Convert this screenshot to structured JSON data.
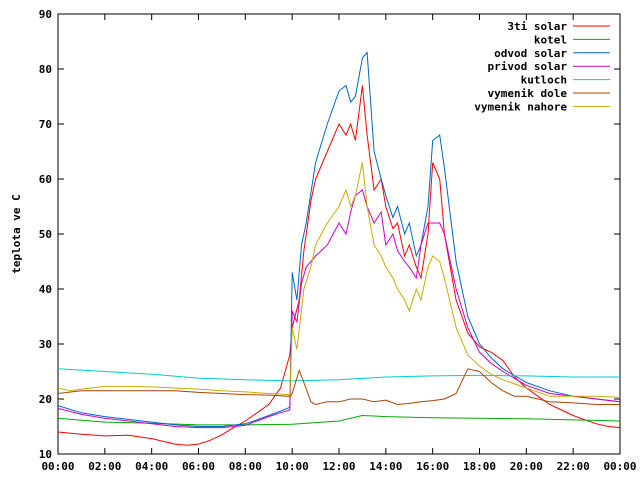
{
  "chart_data": {
    "type": "line",
    "title": "",
    "xlabel": "",
    "ylabel": "teplota ve C",
    "xlim": [
      0,
      24
    ],
    "ylim": [
      10,
      90
    ],
    "x_ticks": [
      "00:00",
      "02:00",
      "04:00",
      "06:00",
      "08:00",
      "10:00",
      "12:00",
      "14:00",
      "16:00",
      "18:00",
      "20:00",
      "22:00",
      "00:00"
    ],
    "y_ticks": [
      "10",
      "20",
      "30",
      "40",
      "50",
      "60",
      "70",
      "80",
      "90"
    ],
    "grid": false,
    "legend_position": "top-right",
    "series": [
      {
        "name": "3ti solar",
        "color": "#ff0000",
        "x": [
          0,
          1,
          2,
          3,
          4,
          5,
          5.5,
          6,
          6.5,
          7,
          7.5,
          8,
          8.5,
          9,
          9.5,
          9.9,
          10,
          10.3,
          10.5,
          10.8,
          11,
          11.5,
          12,
          12.3,
          12.5,
          12.7,
          13,
          13.2,
          13.5,
          13.8,
          14,
          14.3,
          14.5,
          14.8,
          15,
          15.3,
          15.5,
          15.8,
          16,
          16.3,
          16.5,
          17,
          17.5,
          18,
          18.5,
          19,
          19.5,
          20,
          20.5,
          21,
          21.5,
          22,
          22.5,
          23,
          23.5,
          24
        ],
        "y": [
          14,
          13.6,
          13.3,
          13.4,
          12.8,
          11.8,
          11.6,
          11.8,
          12.5,
          13.5,
          14.8,
          16,
          17.5,
          19,
          22,
          28,
          33,
          38,
          47,
          56,
          60,
          65,
          70,
          68,
          70,
          67,
          77,
          68,
          58,
          60,
          55,
          51,
          52,
          46,
          48,
          44,
          42,
          50,
          63,
          60,
          50,
          38,
          32,
          29.5,
          28.5,
          27,
          24,
          22,
          20.5,
          19,
          18,
          17,
          16.2,
          15.5,
          15,
          14.8
        ]
      },
      {
        "name": "kotel",
        "color": "#00aa00",
        "x": [
          0,
          2,
          4,
          6,
          8,
          10,
          12,
          13,
          14,
          16,
          18,
          20,
          22,
          24
        ],
        "y": [
          16.5,
          15.8,
          15.6,
          15.3,
          15.3,
          15.4,
          16,
          17,
          16.8,
          16.6,
          16.5,
          16.4,
          16.2,
          16
        ]
      },
      {
        "name": "odvod solar",
        "color": "#0066cc",
        "x": [
          0,
          1,
          2,
          3,
          4,
          5,
          6,
          7,
          8,
          8.5,
          9,
          9.5,
          9.9,
          10,
          10.2,
          10.4,
          10.6,
          11,
          11.5,
          12,
          12.3,
          12.5,
          12.7,
          13,
          13.2,
          13.5,
          13.8,
          14,
          14.3,
          14.5,
          14.8,
          15,
          15.3,
          15.5,
          15.8,
          16,
          16.3,
          16.5,
          17,
          17.5,
          18,
          18.5,
          19,
          20,
          21,
          22,
          23,
          24
        ],
        "y": [
          18.8,
          17.5,
          16.8,
          16.3,
          15.8,
          15.3,
          15,
          15,
          15.5,
          16.2,
          17,
          17.8,
          18.5,
          43,
          38,
          48,
          52,
          63,
          70,
          76,
          77,
          74,
          75,
          82,
          83,
          65,
          60,
          57,
          53,
          55,
          50,
          52,
          46,
          48,
          55,
          67,
          68,
          62,
          45,
          35,
          30,
          27.5,
          25.5,
          23,
          21.5,
          20.5,
          20,
          19.5
        ]
      },
      {
        "name": "privod solar",
        "color": "#cc00cc",
        "x": [
          0,
          1,
          2,
          3,
          4,
          5,
          6,
          7,
          8,
          8.5,
          9,
          9.5,
          9.9,
          10,
          10.2,
          10.4,
          10.6,
          11,
          11.5,
          12,
          12.3,
          12.5,
          12.7,
          13,
          13.2,
          13.5,
          13.8,
          14,
          14.3,
          14.5,
          14.8,
          15,
          15.3,
          15.5,
          15.8,
          16,
          16.3,
          16.5,
          17,
          17.5,
          18,
          18.5,
          19,
          20,
          21,
          22,
          23,
          24
        ],
        "y": [
          18.3,
          17.2,
          16.5,
          16,
          15.5,
          15,
          14.8,
          14.8,
          15.2,
          16,
          16.8,
          17.5,
          18,
          36,
          34,
          41,
          44,
          46,
          48,
          52,
          50,
          54,
          57,
          58,
          55,
          52,
          54,
          48,
          50,
          47,
          45,
          44,
          42,
          48,
          52,
          52,
          52,
          50,
          40,
          33,
          28.5,
          26.5,
          25,
          22.5,
          21,
          20.5,
          20,
          19.5
        ]
      },
      {
        "name": "kutloch",
        "color": "#00cccc",
        "x": [
          0,
          2,
          4,
          6,
          8,
          10,
          12,
          14,
          16,
          18,
          20,
          22,
          24
        ],
        "y": [
          25.5,
          25,
          24.5,
          23.8,
          23.5,
          23.3,
          23.5,
          24,
          24.2,
          24.3,
          24.2,
          24,
          24
        ]
      },
      {
        "name": "vymenik dole",
        "color": "#aa4400",
        "x": [
          0,
          1,
          2,
          3,
          4,
          5,
          6,
          7,
          8,
          9,
          9.9,
          10,
          10.3,
          10.5,
          10.8,
          11,
          11.5,
          12,
          12.5,
          13,
          13.5,
          14,
          14.5,
          15,
          15.5,
          16,
          16.5,
          17,
          17.5,
          18,
          18.5,
          19,
          19.5,
          20,
          20.5,
          21,
          22,
          23,
          24
        ],
        "y": [
          21,
          21.5,
          21.5,
          21.5,
          21.5,
          21.5,
          21.2,
          21,
          20.8,
          20.7,
          20.5,
          21,
          25.2,
          23,
          19.5,
          19,
          19.5,
          19.5,
          20,
          20,
          19.5,
          19.8,
          19,
          19.2,
          19.5,
          19.7,
          20,
          21,
          25.5,
          25,
          23,
          21.5,
          20.5,
          20.5,
          20,
          19.5,
          19.3,
          19,
          19
        ]
      },
      {
        "name": "vymenik nahore",
        "color": "#ccaa00",
        "x": [
          0,
          0.5,
          1,
          2,
          3,
          4,
          5,
          6,
          7,
          8,
          9,
          9.9,
          10,
          10.2,
          10.5,
          10.8,
          11,
          11.5,
          12,
          12.3,
          12.5,
          12.7,
          13,
          13.2,
          13.5,
          13.8,
          14,
          14.3,
          14.5,
          14.8,
          15,
          15.3,
          15.5,
          15.8,
          16,
          16.3,
          16.5,
          17,
          17.5,
          18,
          18.5,
          19,
          20,
          21,
          22,
          23,
          24
        ],
        "y": [
          22,
          21.5,
          21.8,
          22.3,
          22.3,
          22.2,
          22,
          21.8,
          21.5,
          21.3,
          21,
          20.8,
          33,
          29,
          40,
          44,
          48,
          52,
          55,
          58,
          55,
          57,
          63,
          55,
          48,
          46,
          44,
          42,
          40,
          38,
          36,
          40,
          38,
          44,
          46,
          45,
          42,
          33,
          28,
          26,
          24.5,
          23.5,
          22,
          20.5,
          20.5,
          20.5,
          20.3
        ]
      }
    ]
  }
}
